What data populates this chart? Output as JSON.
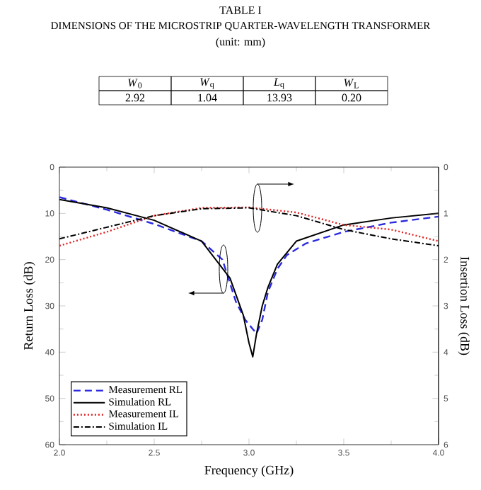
{
  "chart_data": {
    "type": "line",
    "title": "TABLE I",
    "subtitle": "DIMENSIONS OF THE MICROSTRIP QUARTER-WAVELENGTH TRANSFORMER",
    "annotations": [
      "(unit: mm)",
      "*W*$_{0}$",
      "*W*$_{q}$",
      "*L*$_{q}$",
      "*W*$_{L}$",
      "2.92",
      "1.04",
      "13.93",
      "0.20"
    ],
    "xlabel": "Frequency (GHz)",
    "ylabel": "Return Loss (dB)",
    "y2label": "Insertion Loss (dB)",
    "xlim": [
      2.0,
      4.0
    ],
    "xticks": [
      {
        "value": 2.0,
        "label": "2.0"
      },
      {
        "value": 2.5,
        "label": "2.5"
      },
      {
        "value": 3.0,
        "label": "3.0"
      },
      {
        "value": 3.5,
        "label": "3.5"
      },
      {
        "value": 4.0,
        "label": "4.0"
      }
    ],
    "ylim": [
      60,
      0
    ],
    "yticks": [
      0,
      10,
      20,
      30,
      40,
      50,
      60
    ],
    "y2lim": [
      6,
      0
    ],
    "y2ticks": [
      0,
      1,
      2,
      3,
      4,
      5,
      6
    ],
    "legend": "bottom left",
    "series": [
      {
        "name": "Measurement RL",
        "color": "#2a2ae0",
        "line_style": "dashed",
        "x": [
          2.0,
          2.25,
          2.5,
          2.75,
          2.86,
          2.93,
          2.98,
          3.02,
          3.04,
          3.07,
          3.1,
          3.15,
          3.2,
          3.3,
          3.5,
          3.75,
          4.0
        ],
        "values": [
          6.5,
          9.2,
          12.3,
          16,
          20,
          29,
          33,
          35,
          36,
          33,
          27,
          22,
          19,
          16.5,
          14,
          12,
          10.7
        ]
      },
      {
        "name": "Simulation RL",
        "color": "#000000",
        "line_style": "solid",
        "x": [
          2.0,
          2.25,
          2.5,
          2.75,
          2.9,
          2.97,
          3.0,
          3.02,
          3.04,
          3.07,
          3.1,
          3.15,
          3.25,
          3.5,
          3.75,
          4.0
        ],
        "values": [
          7,
          8.8,
          11.5,
          16,
          24,
          32,
          38,
          41,
          36,
          30,
          26,
          21,
          16,
          12.5,
          11,
          10
        ]
      },
      {
        "name": "Measurement IL",
        "color": "#e02020",
        "line_style": "dotted",
        "axis": "y2",
        "x": [
          2.0,
          2.25,
          2.5,
          2.75,
          3.0,
          3.25,
          3.5,
          3.75,
          4.0
        ],
        "values": [
          1.7,
          1.4,
          1.05,
          0.88,
          0.87,
          0.98,
          1.25,
          1.35,
          1.6
        ]
      },
      {
        "name": "Simulation IL",
        "color": "#000000",
        "line_style": "dashdotted",
        "axis": "y2",
        "x": [
          2.0,
          2.25,
          2.5,
          2.75,
          3.0,
          3.25,
          3.5,
          3.75,
          4.0
        ],
        "values": [
          1.55,
          1.3,
          1.05,
          0.9,
          0.88,
          1.05,
          1.35,
          1.55,
          1.7
        ]
      }
    ]
  }
}
